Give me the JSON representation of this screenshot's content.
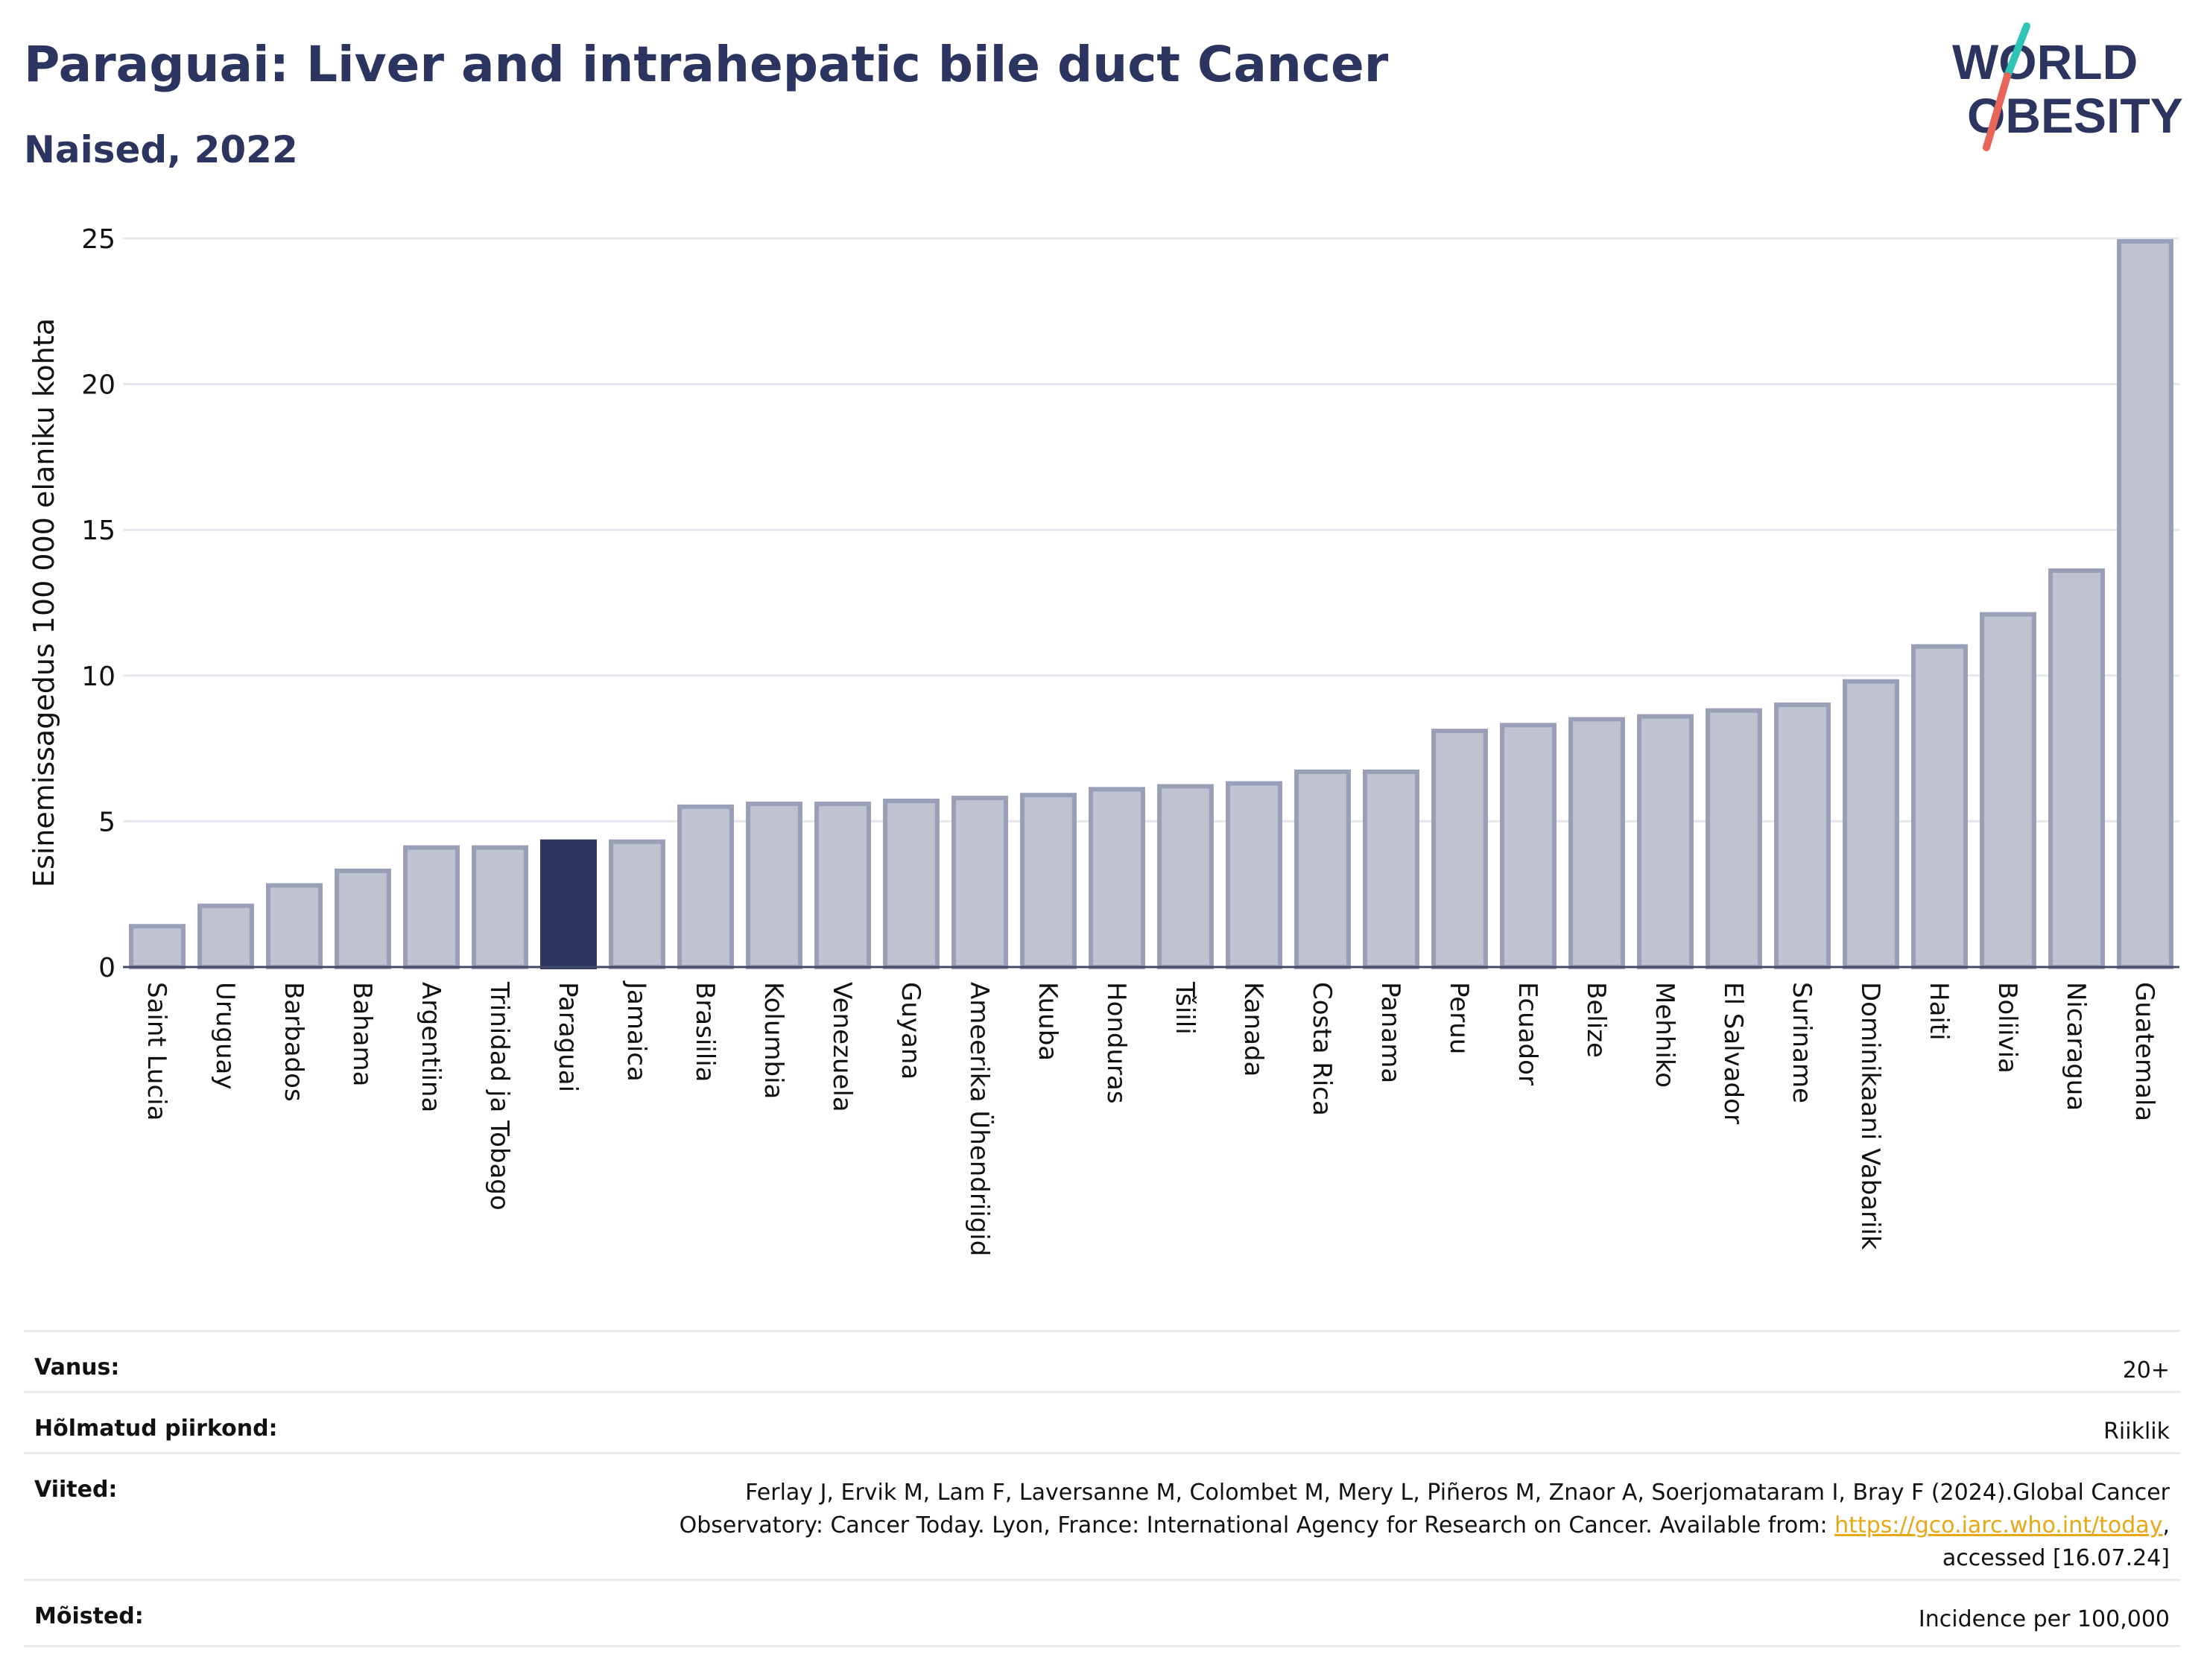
{
  "header": {
    "title": "Paraguai: Liver and intrahepatic bile duct Cancer",
    "subtitle": "Naised, 2022",
    "logo_line1": "WORLD",
    "logo_line2": "OBESITY"
  },
  "colors": {
    "title": "#2b3560",
    "bar": "#bfc2d0",
    "bar_stroke": "#9a9fb8",
    "highlight": "#2b3560",
    "logo_text": "#2b3560",
    "logo_teal": "#2ec4b6",
    "logo_red": "#e8655a",
    "link": "#e6a817"
  },
  "chart_data": {
    "type": "bar",
    "title": "Paraguai: Liver and intrahepatic bile duct Cancer",
    "subtitle": "Naised, 2022",
    "ylabel": "Esinemissagedus 100 000 elaniku kohta",
    "xlabel": "",
    "ylim": [
      0,
      25
    ],
    "yticks": [
      0,
      5,
      10,
      15,
      20,
      25
    ],
    "grid": true,
    "highlight": "Paraguai",
    "categories": [
      "Saint Lucia",
      "Uruguay",
      "Barbados",
      "Bahama",
      "Argentiina",
      "Trinidad ja Tobago",
      "Paraguai",
      "Jamaica",
      "Brasiilia",
      "Kolumbia",
      "Venezuela",
      "Guyana",
      "Ameerika Ühendriigid",
      "Kuuba",
      "Honduras",
      "Tšiili",
      "Kanada",
      "Costa Rica",
      "Panama",
      "Peruu",
      "Ecuador",
      "Belize",
      "Mehhiko",
      "El Salvador",
      "Suriname",
      "Dominikaani Vabariik",
      "Haiti",
      "Boliivia",
      "Nicaragua",
      "Guatemala"
    ],
    "values": [
      1.4,
      2.1,
      2.8,
      3.3,
      4.1,
      4.1,
      4.3,
      4.3,
      5.5,
      5.6,
      5.6,
      5.7,
      5.8,
      5.9,
      6.1,
      6.2,
      6.3,
      6.7,
      6.7,
      8.1,
      8.3,
      8.5,
      8.6,
      8.8,
      9.0,
      9.8,
      11.0,
      12.1,
      13.6,
      24.9
    ]
  },
  "info": {
    "age_label": "Vanus:",
    "age_value": "20+",
    "region_label": "Hõlmatud piirkond:",
    "region_value": "Riiklik",
    "refs_label": "Viited:",
    "refs_line1": "Ferlay J, Ervik M, Lam F, Laversanne M, Colombet M, Mery L, Piñeros M, Znaor A, Soerjomataram I, Bray F (2024).Global Cancer",
    "refs_line2_prefix": "Observatory: Cancer Today. Lyon, France: International Agency for Research on Cancer. Available from: ",
    "refs_link": "https://gco.iarc.who.int/today",
    "refs_line2_suffix": ",",
    "refs_line3": "accessed [16.07.24]",
    "defs_label": "Mõisted:",
    "defs_value": "Incidence per 100,000"
  }
}
